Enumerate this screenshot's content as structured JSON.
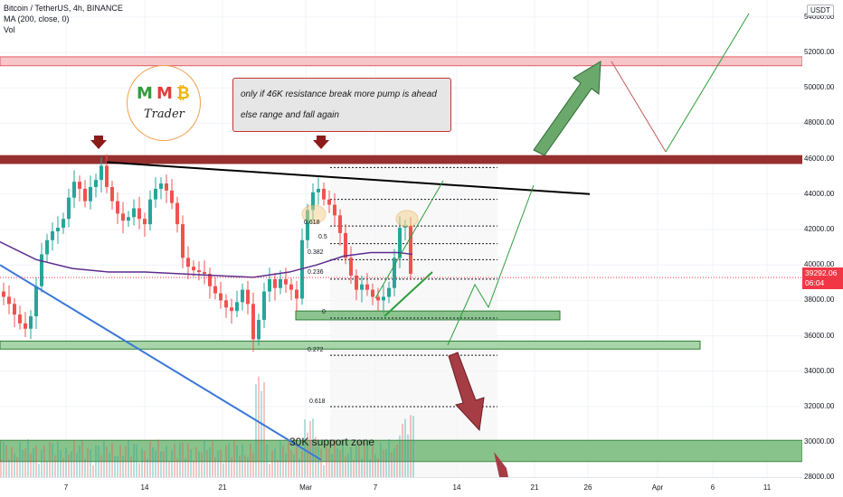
{
  "legend": {
    "symbol": "Bitcoin / TetherUS, 4h, BINANCE",
    "ma": "MA (200, close, 0)",
    "vol": "Vol"
  },
  "currency": "USDT",
  "price_ticks": [
    "54000.00",
    "52000.00",
    "50000.00",
    "48000.00",
    "46000.00",
    "44000.00",
    "42000.00",
    "40000.00",
    "38000.00",
    "36000.00",
    "34000.00",
    "32000.00",
    "30000.00",
    "28000.00"
  ],
  "current_price": "39292.06",
  "countdown": "06:04",
  "time_ticks": [
    "7",
    "14",
    "21",
    "Mar",
    "7",
    "14",
    "21",
    "26",
    "Apr",
    "6",
    "11"
  ],
  "fib_labels": [
    "0.618",
    "0.5",
    "0.382",
    "0.236",
    "0",
    "0.272",
    "0.618"
  ],
  "callout": {
    "line1": "only if 46K resistance break more pump is ahead",
    "line2": "else range and fall again"
  },
  "logo": {
    "m1": "M",
    "m2": "M",
    "coin": "₿",
    "trader": "Trader"
  },
  "support_zone_label": "30K support zone",
  "colors": {
    "up": "#26a69a",
    "down": "#ef5350",
    "ma": "#5b2c8f",
    "resistance": "#8b1a1a",
    "zone_green": "#4caf50",
    "price_badge": "#f23645"
  },
  "chart_data": {
    "type": "candlestick",
    "symbol": "Bitcoin / TetherUS",
    "interval": "4h",
    "exchange": "BINANCE",
    "ylim": [
      27000,
      55500
    ],
    "last_price": 39292.06,
    "resistance": 46000,
    "upper_zone": 51500,
    "support_zone": [
      29000,
      30000
    ],
    "zone_36k": [
      35300,
      35700
    ],
    "zone_37k": [
      37000,
      37400
    ],
    "close_path": [
      [
        0,
        38500
      ],
      [
        6,
        38200
      ],
      [
        12,
        37800
      ],
      [
        18,
        37200
      ],
      [
        24,
        36700
      ],
      [
        30,
        36400
      ],
      [
        36,
        37100
      ],
      [
        42,
        38800
      ],
      [
        48,
        40600
      ],
      [
        54,
        41400
      ],
      [
        60,
        41900
      ],
      [
        66,
        42100
      ],
      [
        72,
        42600
      ],
      [
        78,
        43800
      ],
      [
        84,
        44700
      ],
      [
        90,
        44300
      ],
      [
        96,
        43600
      ],
      [
        102,
        44400
      ],
      [
        108,
        44800
      ],
      [
        114,
        45600
      ],
      [
        120,
        44400
      ],
      [
        126,
        43600
      ],
      [
        132,
        42900
      ],
      [
        138,
        42500
      ],
      [
        144,
        42700
      ],
      [
        150,
        43200
      ],
      [
        156,
        42600
      ],
      [
        162,
        42300
      ],
      [
        168,
        43700
      ],
      [
        174,
        44300
      ],
      [
        180,
        44600
      ],
      [
        186,
        44200
      ],
      [
        192,
        43500
      ],
      [
        198,
        42300
      ],
      [
        204,
        40400
      ],
      [
        210,
        39900
      ],
      [
        216,
        39700
      ],
      [
        222,
        39600
      ],
      [
        228,
        39500
      ],
      [
        234,
        38800
      ],
      [
        240,
        38400
      ],
      [
        246,
        38000
      ],
      [
        252,
        37600
      ],
      [
        258,
        37400
      ],
      [
        264,
        37900
      ],
      [
        270,
        38600
      ],
      [
        276,
        37800
      ],
      [
        282,
        35800
      ],
      [
        288,
        36900
      ],
      [
        294,
        38500
      ],
      [
        300,
        39200
      ],
      [
        306,
        38700
      ],
      [
        312,
        39200
      ],
      [
        318,
        38900
      ],
      [
        324,
        38600
      ],
      [
        330,
        38100
      ],
      [
        336,
        41400
      ],
      [
        342,
        43100
      ],
      [
        348,
        44100
      ],
      [
        354,
        44300
      ],
      [
        360,
        43700
      ],
      [
        366,
        43400
      ],
      [
        372,
        42800
      ],
      [
        378,
        41800
      ],
      [
        384,
        40400
      ],
      [
        390,
        39400
      ],
      [
        396,
        38600
      ],
      [
        402,
        38900
      ],
      [
        408,
        38600
      ],
      [
        414,
        38200
      ],
      [
        420,
        38000
      ],
      [
        426,
        38200
      ],
      [
        432,
        38700
      ],
      [
        438,
        40400
      ],
      [
        444,
        42100
      ],
      [
        450,
        42200
      ],
      [
        456,
        39500
      ]
    ],
    "ma200": [
      [
        0,
        41300
      ],
      [
        40,
        40300
      ],
      [
        80,
        39800
      ],
      [
        120,
        39600
      ],
      [
        160,
        39600
      ],
      [
        200,
        39500
      ],
      [
        240,
        39400
      ],
      [
        280,
        39300
      ],
      [
        320,
        39600
      ],
      [
        350,
        40000
      ],
      [
        380,
        40500
      ],
      [
        410,
        40700
      ],
      [
        440,
        40700
      ],
      [
        456,
        40600
      ]
    ]
  }
}
